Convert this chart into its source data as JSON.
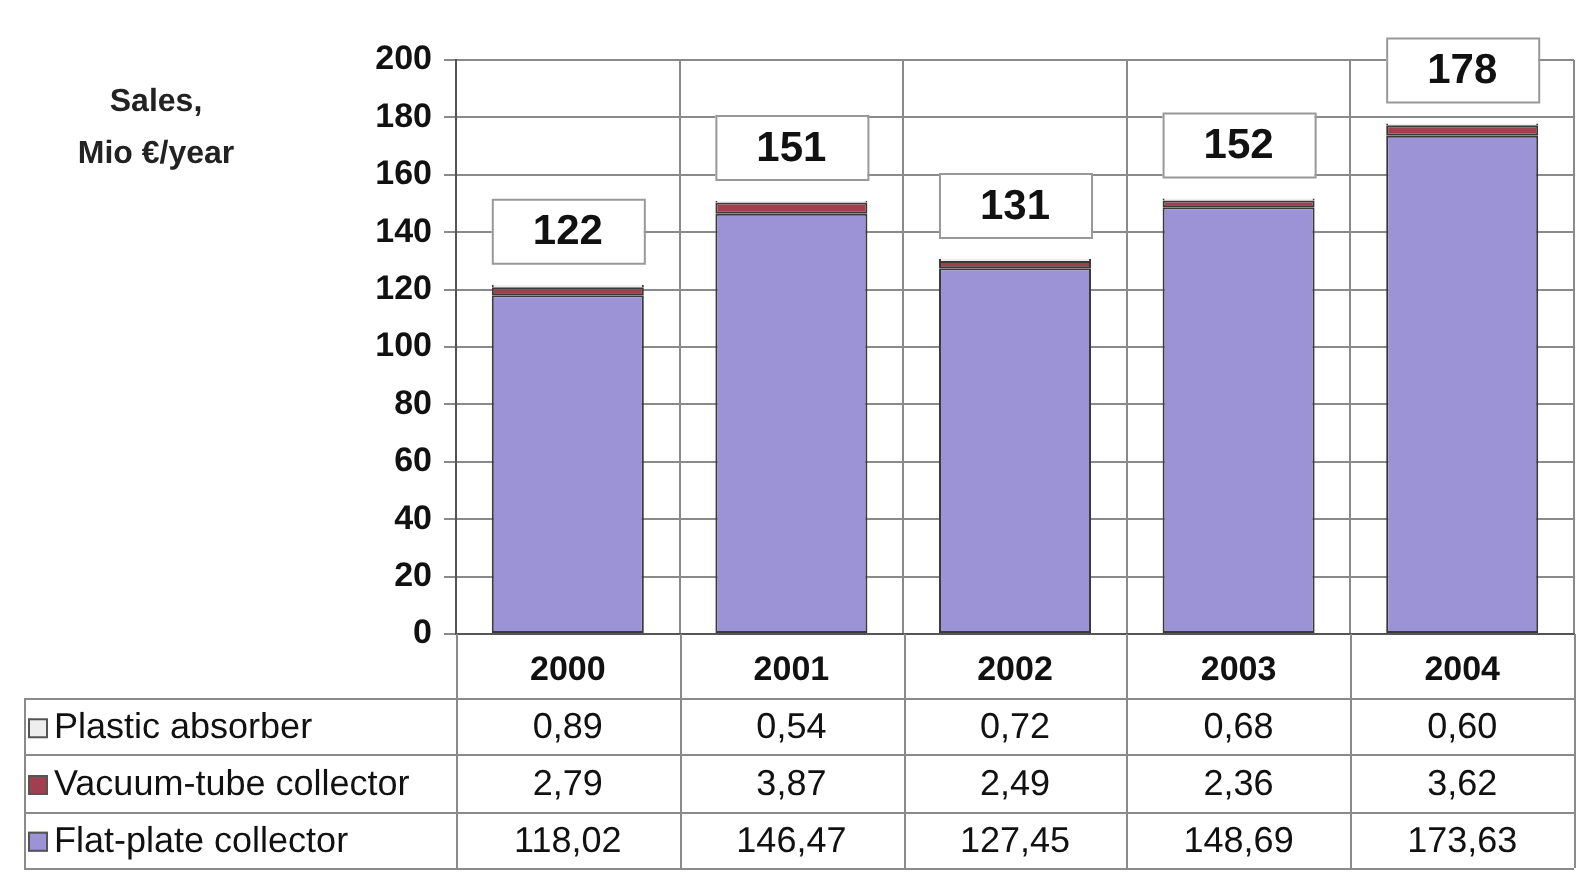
{
  "chart_data": {
    "type": "bar",
    "ylabel": "Sales,\nMio €/year",
    "categories": [
      "2000",
      "2001",
      "2002",
      "2003",
      "2004"
    ],
    "series": [
      {
        "name": "Flat-plate collector",
        "color": "#9b93d5",
        "values": [
          118.02,
          146.47,
          127.45,
          148.69,
          173.63
        ],
        "value_labels": [
          "118,02",
          "146,47",
          "127,45",
          "148,69",
          "173,63"
        ]
      },
      {
        "name": "Vacuum-tube collector",
        "color": "#a0404f",
        "values": [
          2.79,
          3.87,
          2.49,
          2.36,
          3.62
        ],
        "value_labels": [
          "2,79",
          "3,87",
          "2,49",
          "2,36",
          "3,62"
        ]
      },
      {
        "name": "Plastic absorber",
        "color": "#eeeeee",
        "values": [
          0.89,
          0.54,
          0.72,
          0.68,
          0.6
        ],
        "value_labels": [
          "0,89",
          "0,54",
          "0,72",
          "0,68",
          "0,60"
        ]
      }
    ],
    "stacked": true,
    "totals": [
      "122",
      "151",
      "131",
      "152",
      "178"
    ],
    "ylim": [
      0,
      200
    ],
    "yticks": [
      0,
      20,
      40,
      60,
      80,
      100,
      120,
      140,
      160,
      180,
      200
    ],
    "grid": true,
    "legend": "bottom"
  }
}
